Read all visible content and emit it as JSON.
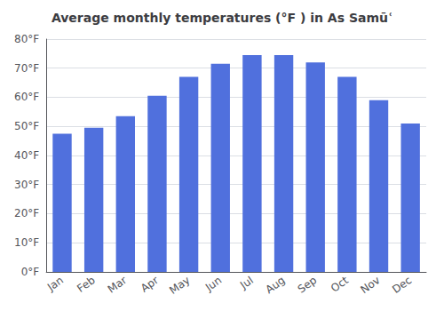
{
  "chart_data": {
    "type": "bar",
    "title": "Average monthly temperatures (°F ) in As Samūʿ",
    "categories": [
      "Jan",
      "Feb",
      "Mar",
      "Apr",
      "May",
      "Jun",
      "Jul",
      "Aug",
      "Sep",
      "Oct",
      "Nov",
      "Dec"
    ],
    "values": [
      47.5,
      49.5,
      53.5,
      60.5,
      67,
      71.5,
      74.5,
      74.5,
      72,
      67,
      59,
      51
    ],
    "ylim": [
      0,
      80
    ],
    "yticks": [
      {
        "value": 0,
        "label": "0°F"
      },
      {
        "value": 10,
        "label": "10°F"
      },
      {
        "value": 20,
        "label": "20°F"
      },
      {
        "value": 30,
        "label": "30°F"
      },
      {
        "value": 40,
        "label": "40°F"
      },
      {
        "value": 50,
        "label": "50°F"
      },
      {
        "value": 60,
        "label": "60°F"
      },
      {
        "value": 70,
        "label": "70°F"
      },
      {
        "value": 80,
        "label": "80°F"
      }
    ],
    "grid": true
  }
}
